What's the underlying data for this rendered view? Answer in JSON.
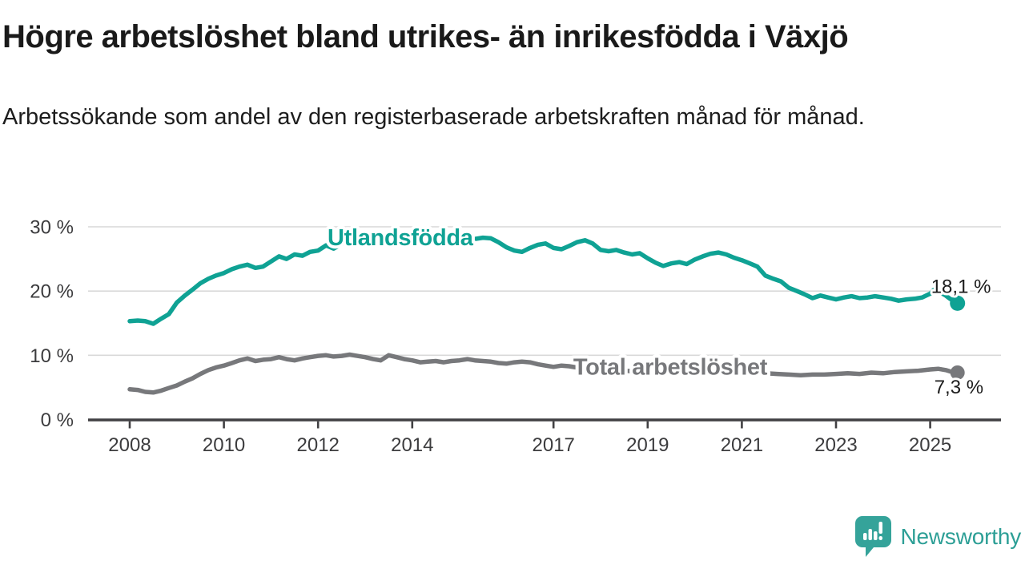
{
  "title": "Högre arbetslöshet bland utrikes- än inrikesfödda i Växjö",
  "subtitle": "Arbetssökande som andel av den registerbaserade arbetskraften månad för månad.",
  "branding": {
    "name": "Newsworthy",
    "color": "#2d9f96",
    "icon": "newsworthy-speech-bubble-bar-chart-icon"
  },
  "chart_data": {
    "type": "line",
    "title": "Högre arbetslöshet bland utrikes- än inrikesfödda i Växjö",
    "subtitle": "Arbetssökande som andel av den registerbaserade arbetskraften månad för månad.",
    "xlabel": "",
    "ylabel": "",
    "unit": "%",
    "grid": "horizontal",
    "legend_position": "inline-on-line",
    "xlim": [
      2007.1,
      2026.5
    ],
    "ylim": [
      0,
      32
    ],
    "x_ticks": [
      {
        "value": 2008,
        "label": "2008"
      },
      {
        "value": 2010,
        "label": "2010"
      },
      {
        "value": 2012,
        "label": "2012"
      },
      {
        "value": 2014,
        "label": "2014"
      },
      {
        "value": 2017,
        "label": "2017"
      },
      {
        "value": 2019,
        "label": "2019"
      },
      {
        "value": 2021,
        "label": "2021"
      },
      {
        "value": 2023,
        "label": "2023"
      },
      {
        "value": 2025,
        "label": "2025"
      }
    ],
    "y_ticks": [
      {
        "value": 0,
        "label": "0 %"
      },
      {
        "value": 10,
        "label": "10 %"
      },
      {
        "value": 20,
        "label": "20 %"
      },
      {
        "value": 30,
        "label": "30 %"
      }
    ],
    "series": [
      {
        "name": "Utlandsfödda",
        "color": "#0FA294",
        "end_label": "18,1 %",
        "end_value": 18.1,
        "label_anchor": {
          "x": 2012.2,
          "y": 27.1
        },
        "points": [
          [
            2008.0,
            15.3
          ],
          [
            2008.17,
            15.4
          ],
          [
            2008.33,
            15.3
          ],
          [
            2008.5,
            14.9
          ],
          [
            2008.67,
            15.7
          ],
          [
            2008.83,
            16.4
          ],
          [
            2009.0,
            18.2
          ],
          [
            2009.17,
            19.3
          ],
          [
            2009.33,
            20.2
          ],
          [
            2009.5,
            21.2
          ],
          [
            2009.67,
            21.9
          ],
          [
            2009.83,
            22.4
          ],
          [
            2010.0,
            22.8
          ],
          [
            2010.17,
            23.4
          ],
          [
            2010.33,
            23.8
          ],
          [
            2010.5,
            24.1
          ],
          [
            2010.67,
            23.6
          ],
          [
            2010.83,
            23.8
          ],
          [
            2011.0,
            24.6
          ],
          [
            2011.17,
            25.4
          ],
          [
            2011.33,
            25.0
          ],
          [
            2011.5,
            25.7
          ],
          [
            2011.67,
            25.5
          ],
          [
            2011.83,
            26.1
          ],
          [
            2012.0,
            26.3
          ],
          [
            2012.17,
            27.1
          ],
          [
            2012.33,
            26.6
          ],
          [
            2012.5,
            27.3
          ],
          [
            2012.67,
            27.7
          ],
          [
            2012.83,
            27.5
          ],
          [
            2013.0,
            27.3
          ],
          [
            2013.17,
            27.7
          ],
          [
            2013.33,
            27.4
          ],
          [
            2013.5,
            27.9
          ],
          [
            2013.67,
            27.6
          ],
          [
            2013.83,
            27.4
          ],
          [
            2014.0,
            27.8
          ],
          [
            2014.17,
            27.5
          ],
          [
            2014.33,
            27.3
          ],
          [
            2014.5,
            27.7
          ],
          [
            2014.67,
            28.0
          ],
          [
            2014.83,
            27.8
          ],
          [
            2015.0,
            27.6
          ],
          [
            2015.17,
            27.9
          ],
          [
            2015.33,
            28.1
          ],
          [
            2015.5,
            28.3
          ],
          [
            2015.67,
            28.2
          ],
          [
            2015.83,
            27.6
          ],
          [
            2016.0,
            26.8
          ],
          [
            2016.17,
            26.3
          ],
          [
            2016.33,
            26.1
          ],
          [
            2016.5,
            26.7
          ],
          [
            2016.67,
            27.2
          ],
          [
            2016.83,
            27.4
          ],
          [
            2017.0,
            26.7
          ],
          [
            2017.17,
            26.5
          ],
          [
            2017.33,
            27.0
          ],
          [
            2017.5,
            27.6
          ],
          [
            2017.67,
            27.9
          ],
          [
            2017.83,
            27.4
          ],
          [
            2018.0,
            26.4
          ],
          [
            2018.17,
            26.2
          ],
          [
            2018.33,
            26.4
          ],
          [
            2018.5,
            26.0
          ],
          [
            2018.67,
            25.7
          ],
          [
            2018.83,
            25.9
          ],
          [
            2019.0,
            25.1
          ],
          [
            2019.17,
            24.4
          ],
          [
            2019.33,
            23.9
          ],
          [
            2019.5,
            24.3
          ],
          [
            2019.67,
            24.5
          ],
          [
            2019.83,
            24.2
          ],
          [
            2020.0,
            24.9
          ],
          [
            2020.17,
            25.4
          ],
          [
            2020.33,
            25.8
          ],
          [
            2020.5,
            26.0
          ],
          [
            2020.67,
            25.7
          ],
          [
            2020.83,
            25.2
          ],
          [
            2021.0,
            24.8
          ],
          [
            2021.17,
            24.3
          ],
          [
            2021.33,
            23.8
          ],
          [
            2021.5,
            22.4
          ],
          [
            2021.67,
            21.9
          ],
          [
            2021.83,
            21.5
          ],
          [
            2022.0,
            20.5
          ],
          [
            2022.17,
            20.0
          ],
          [
            2022.33,
            19.5
          ],
          [
            2022.5,
            18.9
          ],
          [
            2022.67,
            19.3
          ],
          [
            2022.83,
            19.0
          ],
          [
            2023.0,
            18.7
          ],
          [
            2023.17,
            19.0
          ],
          [
            2023.33,
            19.2
          ],
          [
            2023.5,
            18.9
          ],
          [
            2023.67,
            19.0
          ],
          [
            2023.83,
            19.2
          ],
          [
            2024.0,
            19.0
          ],
          [
            2024.17,
            18.8
          ],
          [
            2024.33,
            18.5
          ],
          [
            2024.5,
            18.7
          ],
          [
            2024.67,
            18.8
          ],
          [
            2024.83,
            19.0
          ],
          [
            2025.0,
            19.6
          ],
          [
            2025.08,
            20.2
          ],
          [
            2025.17,
            20.0
          ],
          [
            2025.33,
            19.3
          ],
          [
            2025.42,
            18.8
          ],
          [
            2025.58,
            18.1
          ]
        ]
      },
      {
        "name": "Total arbetslöshet",
        "color": "#77787B",
        "end_label": "7,3 %",
        "end_value": 7.3,
        "label_anchor": {
          "x": 2017.42,
          "y": 7.0
        },
        "points": [
          [
            2008.0,
            4.7
          ],
          [
            2008.17,
            4.6
          ],
          [
            2008.33,
            4.3
          ],
          [
            2008.5,
            4.2
          ],
          [
            2008.67,
            4.5
          ],
          [
            2008.83,
            4.9
          ],
          [
            2009.0,
            5.3
          ],
          [
            2009.17,
            5.9
          ],
          [
            2009.33,
            6.4
          ],
          [
            2009.5,
            7.1
          ],
          [
            2009.67,
            7.7
          ],
          [
            2009.83,
            8.1
          ],
          [
            2010.0,
            8.4
          ],
          [
            2010.17,
            8.8
          ],
          [
            2010.33,
            9.2
          ],
          [
            2010.5,
            9.5
          ],
          [
            2010.67,
            9.1
          ],
          [
            2010.83,
            9.3
          ],
          [
            2011.0,
            9.4
          ],
          [
            2011.17,
            9.7
          ],
          [
            2011.33,
            9.4
          ],
          [
            2011.5,
            9.2
          ],
          [
            2011.67,
            9.5
          ],
          [
            2011.83,
            9.7
          ],
          [
            2012.0,
            9.9
          ],
          [
            2012.17,
            10.0
          ],
          [
            2012.33,
            9.8
          ],
          [
            2012.5,
            9.9
          ],
          [
            2012.67,
            10.1
          ],
          [
            2012.83,
            9.9
          ],
          [
            2013.0,
            9.7
          ],
          [
            2013.17,
            9.4
          ],
          [
            2013.33,
            9.2
          ],
          [
            2013.5,
            10.0
          ],
          [
            2013.67,
            9.7
          ],
          [
            2013.83,
            9.4
          ],
          [
            2014.0,
            9.2
          ],
          [
            2014.17,
            8.9
          ],
          [
            2014.33,
            9.0
          ],
          [
            2014.5,
            9.1
          ],
          [
            2014.67,
            8.9
          ],
          [
            2014.83,
            9.1
          ],
          [
            2015.0,
            9.2
          ],
          [
            2015.17,
            9.4
          ],
          [
            2015.33,
            9.2
          ],
          [
            2015.5,
            9.1
          ],
          [
            2015.67,
            9.0
          ],
          [
            2015.83,
            8.8
          ],
          [
            2016.0,
            8.7
          ],
          [
            2016.17,
            8.9
          ],
          [
            2016.33,
            9.0
          ],
          [
            2016.5,
            8.9
          ],
          [
            2016.67,
            8.6
          ],
          [
            2016.83,
            8.4
          ],
          [
            2017.0,
            8.2
          ],
          [
            2017.17,
            8.4
          ],
          [
            2017.33,
            8.3
          ],
          [
            2017.5,
            8.1
          ],
          [
            2017.67,
            8.0
          ],
          [
            2017.83,
            7.9
          ],
          [
            2018.0,
            7.8
          ],
          [
            2018.25,
            7.7
          ],
          [
            2018.5,
            7.6
          ],
          [
            2018.75,
            7.5
          ],
          [
            2019.0,
            7.4
          ],
          [
            2019.25,
            7.2
          ],
          [
            2019.5,
            7.3
          ],
          [
            2019.75,
            7.4
          ],
          [
            2020.0,
            7.6
          ],
          [
            2020.25,
            7.9
          ],
          [
            2020.5,
            8.0
          ],
          [
            2020.75,
            7.8
          ],
          [
            2021.0,
            7.6
          ],
          [
            2021.25,
            7.4
          ],
          [
            2021.5,
            7.2
          ],
          [
            2021.75,
            7.1
          ],
          [
            2022.0,
            7.0
          ],
          [
            2022.25,
            6.9
          ],
          [
            2022.5,
            7.0
          ],
          [
            2022.75,
            7.0
          ],
          [
            2023.0,
            7.1
          ],
          [
            2023.25,
            7.2
          ],
          [
            2023.5,
            7.1
          ],
          [
            2023.75,
            7.3
          ],
          [
            2024.0,
            7.2
          ],
          [
            2024.25,
            7.4
          ],
          [
            2024.5,
            7.5
          ],
          [
            2024.75,
            7.6
          ],
          [
            2025.0,
            7.8
          ],
          [
            2025.17,
            7.9
          ],
          [
            2025.33,
            7.7
          ],
          [
            2025.42,
            7.5
          ],
          [
            2025.58,
            7.3
          ]
        ]
      }
    ]
  }
}
